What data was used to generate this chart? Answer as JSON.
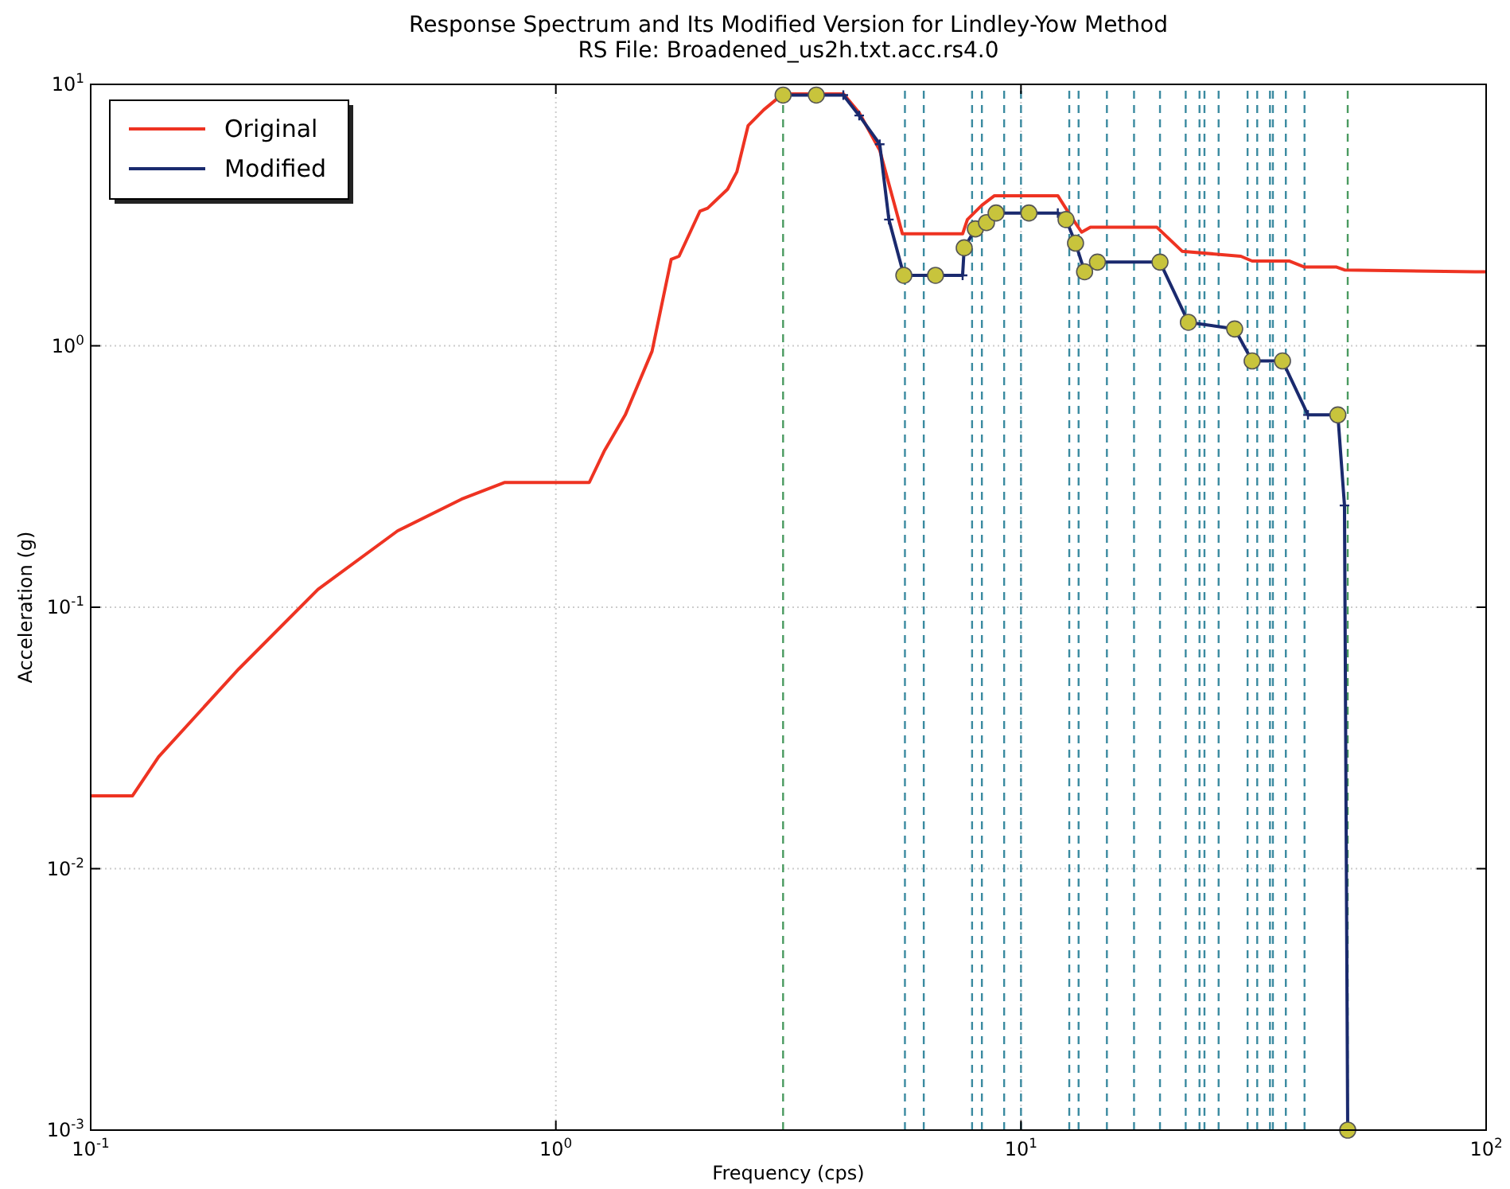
{
  "chart_data": {
    "type": "line",
    "title": "Response Spectrum and Its Modified Version for Lindley-Yow Method",
    "subtitle": "RS File: Broadened_us2h.txt.acc.rs4.0",
    "xlabel": "Frequency (cps)",
    "ylabel": "Acceleration (g)",
    "log": "xy",
    "grid": true,
    "legend": "top left",
    "xlim": [
      0.1,
      100
    ],
    "ylim": [
      0.001,
      10
    ],
    "xticks": [
      {
        "value": 0.1,
        "label": "10$^{-1}$"
      },
      {
        "value": 1,
        "label": "10$^{0}$"
      },
      {
        "value": 10,
        "label": "10$^{1}$"
      },
      {
        "value": 100,
        "label": "10$^{2}$"
      }
    ],
    "yticks": [
      {
        "value": 0.001,
        "label": "10$^{-3}$"
      },
      {
        "value": 0.01,
        "label": "10$^{-2}$"
      },
      {
        "value": 0.1,
        "label": "10$^{-1}$"
      },
      {
        "value": 1,
        "label": "10$^{0}$"
      },
      {
        "value": 10,
        "label": "10$^{1}$"
      }
    ],
    "series": [
      {
        "name": "Original",
        "color": "#ee3322",
        "marker": "none",
        "x": [
          0.1,
          0.123,
          0.14,
          0.208,
          0.308,
          0.457,
          0.627,
          0.775,
          1.18,
          1.27,
          1.41,
          1.61,
          1.77,
          1.84,
          2.04,
          2.12,
          2.34,
          2.45,
          2.59,
          2.8,
          3.08,
          4.15,
          4.49,
          4.97,
          5.56,
          7.49,
          7.67,
          8.24,
          8.77,
          12.0,
          12.8,
          13.5,
          14.1,
          19.6,
          22.2,
          29.7,
          31.4,
          37.7,
          40.7,
          47.7,
          49.6,
          94.6,
          100
        ],
        "values": [
          0.019,
          0.019,
          0.0268,
          0.058,
          0.117,
          0.196,
          0.259,
          0.3,
          0.3,
          0.395,
          0.544,
          0.953,
          2.14,
          2.2,
          3.27,
          3.36,
          3.97,
          4.63,
          6.95,
          8.0,
          9.2,
          9.2,
          7.78,
          5.6,
          2.68,
          2.68,
          3.04,
          3.45,
          3.75,
          3.75,
          3.13,
          2.72,
          2.84,
          2.84,
          2.3,
          2.2,
          2.11,
          2.11,
          2.0,
          2.0,
          1.95,
          1.92,
          1.92
        ]
      },
      {
        "name": "Modified",
        "color": "#1a2a6e",
        "marker": "cross",
        "x": [
          3.08,
          3.63,
          4.15,
          4.49,
          4.97,
          5.2,
          5.6,
          6.55,
          7.49,
          7.55,
          7.98,
          8.43,
          8.84,
          10.4,
          12.0,
          12.5,
          13.1,
          13.7,
          14.6,
          19.9,
          22.9,
          28.8,
          31.4,
          36.5,
          41.4,
          48.0,
          49.6,
          50.4
        ],
        "values": [
          9.1,
          9.1,
          9.1,
          7.6,
          5.9,
          3.04,
          1.86,
          1.86,
          1.86,
          2.37,
          2.8,
          2.96,
          3.22,
          3.22,
          3.22,
          3.04,
          2.47,
          1.92,
          2.09,
          2.09,
          1.23,
          1.16,
          0.875,
          0.875,
          0.544,
          0.544,
          0.245,
          0.001
        ]
      },
      {
        "type": "scatter",
        "color": "#c8c43c",
        "marker": "circle",
        "x": [
          3.08,
          3.63,
          5.6,
          6.55,
          7.55,
          7.98,
          8.43,
          8.84,
          10.4,
          12.5,
          13.1,
          13.7,
          14.6,
          19.9,
          22.9,
          28.8,
          31.4,
          36.5,
          48.0,
          50.4
        ],
        "values": [
          9.1,
          9.1,
          1.86,
          1.86,
          2.37,
          2.8,
          2.96,
          3.22,
          3.22,
          3.04,
          2.47,
          1.92,
          2.09,
          2.09,
          1.23,
          1.16,
          0.875,
          0.875,
          0.544,
          0.001
        ]
      }
    ],
    "ref_lines": [
      {
        "axis": "x",
        "value": 3.08,
        "color": "#4a9a60",
        "line_style": "dashed"
      },
      {
        "axis": "x",
        "value": 5.63,
        "color": "#3a8aa0",
        "line_style": "dashed"
      },
      {
        "axis": "x",
        "value": 6.18,
        "color": "#3a8aa0",
        "line_style": "dashed"
      },
      {
        "axis": "x",
        "value": 7.85,
        "color": "#3a8aa0",
        "line_style": "dashed"
      },
      {
        "axis": "x",
        "value": 8.24,
        "color": "#3a8aa0",
        "line_style": "dashed"
      },
      {
        "axis": "x",
        "value": 9.2,
        "color": "#3a8aa0",
        "line_style": "dashed"
      },
      {
        "axis": "x",
        "value": 10.0,
        "color": "#3a8aa0",
        "line_style": "dashed"
      },
      {
        "axis": "x",
        "value": 12.7,
        "color": "#3a8aa0",
        "line_style": "dashed"
      },
      {
        "axis": "x",
        "value": 13.3,
        "color": "#3a8aa0",
        "line_style": "dashed"
      },
      {
        "axis": "x",
        "value": 15.3,
        "color": "#3a8aa0",
        "line_style": "dashed"
      },
      {
        "axis": "x",
        "value": 17.5,
        "color": "#3a8aa0",
        "line_style": "dashed"
      },
      {
        "axis": "x",
        "value": 19.9,
        "color": "#3a8aa0",
        "line_style": "dashed"
      },
      {
        "axis": "x",
        "value": 22.6,
        "color": "#3a8aa0",
        "line_style": "dashed"
      },
      {
        "axis": "x",
        "value": 24.2,
        "color": "#3a8aa0",
        "line_style": "dashed"
      },
      {
        "axis": "x",
        "value": 24.8,
        "color": "#3a8aa0",
        "line_style": "dashed"
      },
      {
        "axis": "x",
        "value": 26.6,
        "color": "#3a8aa0",
        "line_style": "dashed"
      },
      {
        "axis": "x",
        "value": 30.7,
        "color": "#3a8aa0",
        "line_style": "dashed"
      },
      {
        "axis": "x",
        "value": 32.2,
        "color": "#3a8aa0",
        "line_style": "dashed"
      },
      {
        "axis": "x",
        "value": 34.3,
        "color": "#3a8aa0",
        "line_style": "dashed"
      },
      {
        "axis": "x",
        "value": 34.8,
        "color": "#3a8aa0",
        "line_style": "dashed"
      },
      {
        "axis": "x",
        "value": 37.1,
        "color": "#3a8aa0",
        "line_style": "dashed"
      },
      {
        "axis": "x",
        "value": 40.7,
        "color": "#3a8aa0",
        "line_style": "dashed"
      },
      {
        "axis": "x",
        "value": 50.4,
        "color": "#4a9a60",
        "line_style": "dashed"
      }
    ]
  }
}
